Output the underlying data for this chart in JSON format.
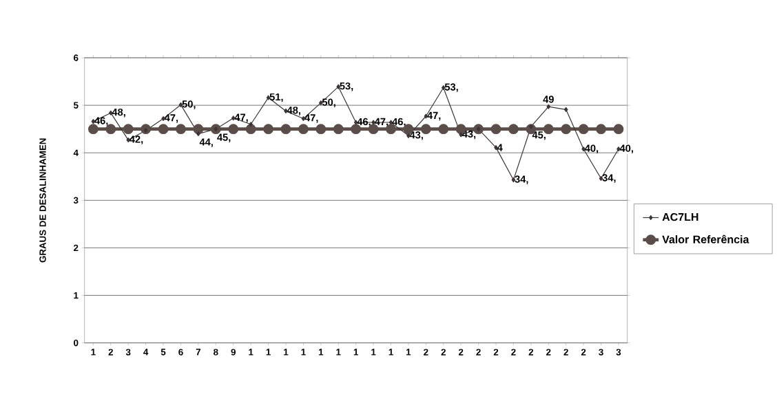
{
  "chart_data": {
    "type": "line",
    "ylabel": "GRAUS DE DESALINHAMEN",
    "categories": [
      "1",
      "2",
      "3",
      "4",
      "5",
      "6",
      "7",
      "8",
      "9",
      "1",
      "1",
      "1",
      "1",
      "1",
      "1",
      "1",
      "1",
      "1",
      "1",
      "2",
      "2",
      "2",
      "2",
      "2",
      "2",
      "2",
      "2",
      "2",
      "2",
      "3",
      "3"
    ],
    "series": [
      {
        "name": "AC7LH",
        "color": "#3d3535",
        "marker": "diamond",
        "values": [
          4.66,
          4.84,
          4.27,
          4.47,
          4.72,
          5.01,
          4.4,
          4.5,
          4.73,
          4.6,
          5.16,
          4.88,
          4.72,
          5.05,
          5.39,
          4.64,
          4.64,
          4.64,
          4.36,
          4.77,
          5.37,
          4.38,
          4.5,
          4.11,
          3.43,
          4.55,
          4.97,
          4.91,
          4.08,
          3.46,
          4.08
        ]
      },
      {
        "name": "Valor Referência",
        "color": "#5a4d4a",
        "marker": "circle",
        "values": [
          4.5,
          4.5,
          4.5,
          4.5,
          4.5,
          4.5,
          4.5,
          4.5,
          4.5,
          4.5,
          4.5,
          4.5,
          4.5,
          4.5,
          4.5,
          4.5,
          4.5,
          4.5,
          4.5,
          4.5,
          4.5,
          4.5,
          4.5,
          4.5,
          4.5,
          4.5,
          4.5,
          4.5,
          4.5,
          4.5,
          4.5
        ]
      }
    ],
    "annotations": [
      "46,",
      "48,",
      "42,",
      "47,",
      "50,",
      "44,",
      "45,",
      "47,",
      "51,",
      "48,",
      "47,",
      "50,",
      "53,",
      "46,",
      "47,",
      "46,",
      "43,",
      "47,",
      "53,",
      "43,",
      "4",
      "34,",
      "45,",
      "49",
      "40,",
      "34,",
      "40,"
    ],
    "ylim": [
      0,
      6
    ],
    "yticks": [
      0,
      1,
      2,
      3,
      4,
      5,
      6
    ],
    "grid": "y",
    "legend": "right"
  }
}
